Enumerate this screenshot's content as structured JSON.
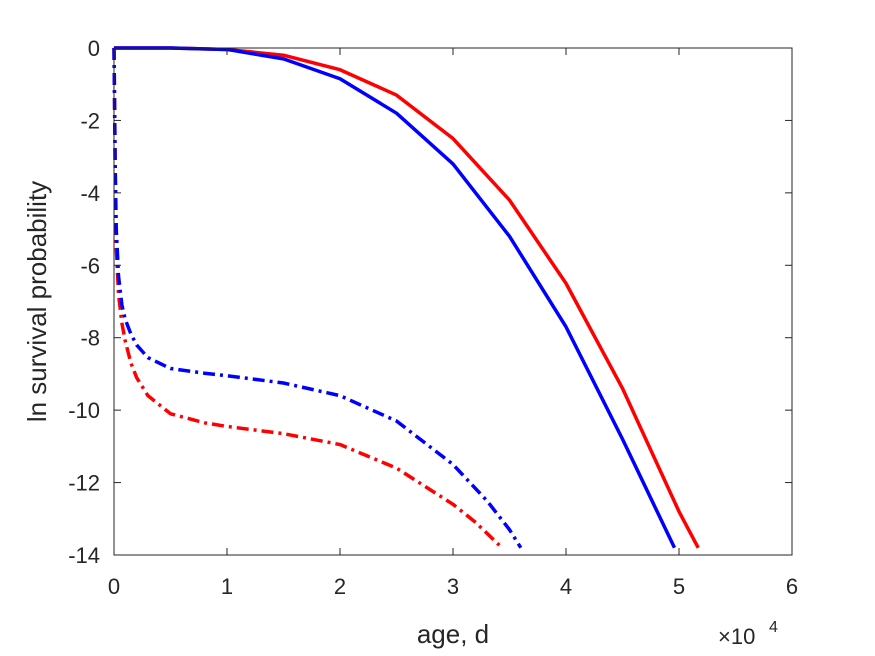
{
  "chart_data": {
    "type": "line",
    "title": "",
    "xlabel": "age, d",
    "ylabel": "ln survival probability",
    "x_multiplier": "×10",
    "x_multiplier_exp": "4",
    "xlim": [
      0,
      60000
    ],
    "ylim": [
      -14,
      0
    ],
    "xticks": [
      0,
      10000,
      20000,
      30000,
      40000,
      50000,
      60000
    ],
    "xtick_labels": [
      "0",
      "1",
      "2",
      "3",
      "4",
      "5",
      "6"
    ],
    "yticks": [
      0,
      -2,
      -4,
      -6,
      -8,
      -10,
      -12,
      -14
    ],
    "ytick_labels": [
      "0",
      "-2",
      "-4",
      "-6",
      "-8",
      "-10",
      "-12",
      "-14"
    ],
    "grid": false,
    "legend": "none",
    "series": [
      {
        "color": "#ff0000",
        "style": "solid",
        "x": [
          0,
          100,
          5000,
          10000,
          15000,
          20000,
          25000,
          30000,
          35000,
          40000,
          45000,
          50000,
          51700
        ],
        "y": [
          0,
          0,
          0,
          -0.04,
          -0.2,
          -0.6,
          -1.3,
          -2.5,
          -4.2,
          -6.5,
          -9.4,
          -12.8,
          -13.8
        ]
      },
      {
        "color": "#0000ff",
        "style": "solid",
        "x": [
          0,
          100,
          5000,
          10000,
          15000,
          20000,
          25000,
          30000,
          35000,
          40000,
          45000,
          49600
        ],
        "y": [
          0,
          0,
          0,
          -0.04,
          -0.3,
          -0.85,
          -1.8,
          -3.2,
          -5.2,
          -7.7,
          -10.8,
          -13.8
        ]
      },
      {
        "color": "#ff0000",
        "style": "dashdot",
        "x": [
          0,
          50,
          100,
          200,
          400,
          700,
          1000,
          1500,
          2000,
          3000,
          5000,
          8000,
          10000,
          15000,
          20000,
          25000,
          30000,
          32000,
          34000,
          34300
        ],
        "y": [
          0,
          -1.5,
          -3.2,
          -5.5,
          -6.8,
          -7.6,
          -8.1,
          -8.7,
          -9.1,
          -9.6,
          -10.1,
          -10.35,
          -10.45,
          -10.65,
          -10.95,
          -11.6,
          -12.6,
          -13.1,
          -13.7,
          -13.8
        ]
      },
      {
        "color": "#0000ff",
        "style": "dashdot",
        "x": [
          0,
          50,
          100,
          200,
          400,
          700,
          1000,
          1500,
          2000,
          3000,
          5000,
          8000,
          10000,
          15000,
          20000,
          25000,
          30000,
          33000,
          35000,
          36000
        ],
        "y": [
          0,
          -1.5,
          -3.2,
          -5.0,
          -6.3,
          -7.1,
          -7.5,
          -7.9,
          -8.2,
          -8.55,
          -8.85,
          -8.98,
          -9.05,
          -9.25,
          -9.6,
          -10.3,
          -11.5,
          -12.5,
          -13.3,
          -13.8
        ]
      }
    ]
  }
}
